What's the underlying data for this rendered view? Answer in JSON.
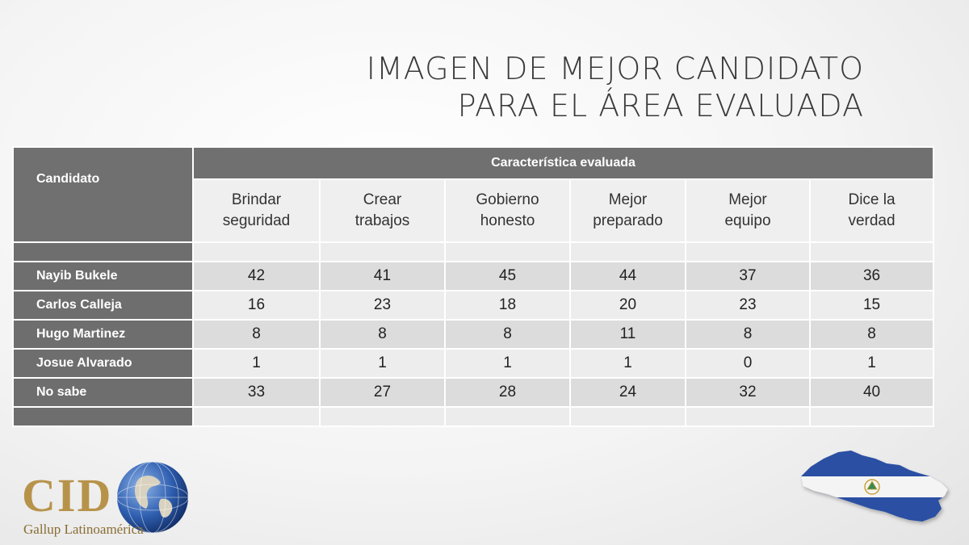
{
  "title": {
    "line1": "IMAGEN DE MEJOR CANDIDATO",
    "line2": "PARA EL ÁREA EVALUADA"
  },
  "table": {
    "candidate_header": "Candidato",
    "group_header": "Característica evaluada",
    "columns": [
      {
        "line1": "Brindar",
        "line2": "seguridad"
      },
      {
        "line1": "Crear",
        "line2": "trabajos"
      },
      {
        "line1": "Gobierno",
        "line2": "honesto"
      },
      {
        "line1": "Mejor",
        "line2": "preparado"
      },
      {
        "line1": "Mejor",
        "line2": "equipo"
      },
      {
        "line1": "Dice la",
        "line2": "verdad"
      }
    ],
    "rows": [
      {
        "name": "Nayib Bukele",
        "values": [
          "42",
          "41",
          "45",
          "44",
          "37",
          "36"
        ]
      },
      {
        "name": "Carlos Calleja",
        "values": [
          "16",
          "23",
          "18",
          "20",
          "23",
          "15"
        ]
      },
      {
        "name": "Hugo Martinez",
        "values": [
          "8",
          "8",
          "8",
          "11",
          "8",
          "8"
        ]
      },
      {
        "name": "Josue Alvarado",
        "values": [
          "1",
          "1",
          "1",
          "1",
          "0",
          "1"
        ]
      },
      {
        "name": "No sabe",
        "values": [
          "33",
          "27",
          "28",
          "24",
          "32",
          "40"
        ]
      }
    ]
  },
  "logo": {
    "brand": "CID",
    "subtitle": "Gallup Latinoamérica",
    "icon": "globe-icon"
  },
  "map": {
    "icon": "el-salvador-flag-map-icon",
    "colors": {
      "blue": "#2b4fa3",
      "white": "#ffffff"
    }
  }
}
